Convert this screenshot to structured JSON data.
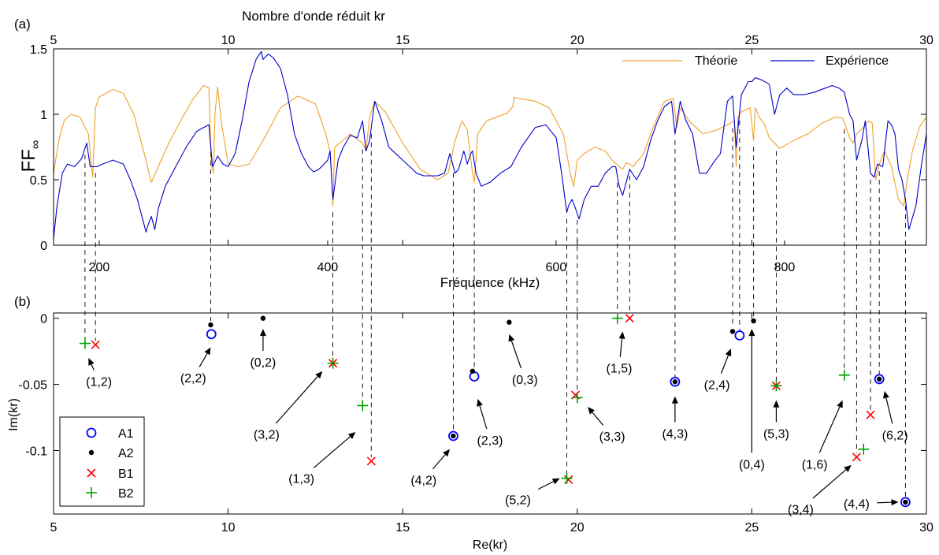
{
  "chart_data": [
    {
      "panel": "(a)",
      "type": "line",
      "ylabel": "FF",
      "ylabel_sub": "∞",
      "top_axis": {
        "label": "Nombre d'onde réduit kr",
        "lim": [
          5,
          30
        ],
        "ticks": [
          5,
          10,
          15,
          20,
          25,
          30
        ]
      },
      "bottom_axis": {
        "label": "Fréquence (kHz)",
        "ticks": [
          200,
          400,
          600,
          800
        ]
      },
      "ylim": [
        0,
        1.5
      ],
      "yticks": [
        0,
        0.5,
        1,
        1.5
      ],
      "legend": "top-right",
      "series": [
        {
          "name": "Théorie",
          "color": "#f0a12b",
          "x": [
            5.0,
            5.15,
            5.3,
            5.5,
            5.75,
            6.0,
            6.08,
            6.12,
            6.2,
            6.3,
            6.42,
            6.5,
            6.7,
            7.0,
            7.3,
            7.6,
            7.8,
            8.0,
            8.3,
            8.7,
            9.0,
            9.3,
            9.45,
            9.52,
            9.58,
            9.62,
            9.7,
            9.8,
            10.0,
            10.3,
            10.6,
            11.0,
            11.5,
            12.0,
            12.5,
            12.8,
            12.93,
            13.0,
            13.05,
            13.2,
            13.5,
            13.85,
            13.95,
            14.05,
            14.2,
            14.5,
            15.0,
            15.5,
            16.0,
            16.3,
            16.5,
            16.7,
            16.85,
            17.0,
            17.05,
            17.15,
            17.4,
            18.0,
            18.15,
            18.2,
            18.35,
            18.8,
            19.2,
            19.6,
            19.8,
            19.9,
            20.0,
            20.2,
            20.5,
            20.8,
            21.0,
            21.2,
            21.3,
            21.4,
            21.5,
            21.6,
            21.9,
            22.2,
            22.5,
            22.75,
            22.85,
            22.95,
            23.2,
            23.6,
            24.0,
            24.3,
            24.5,
            24.55,
            24.6,
            24.7,
            24.95,
            25.05,
            25.1,
            25.2,
            25.35,
            25.5,
            25.8,
            26.2,
            26.6,
            27.0,
            27.4,
            27.6,
            27.7,
            27.8,
            27.9,
            28.0,
            28.2,
            28.35,
            28.45,
            28.55,
            28.65,
            28.8,
            29.0,
            29.2,
            29.35,
            29.45,
            29.6,
            29.8,
            30.0
          ],
          "y": [
            0.55,
            0.8,
            0.95,
            1.0,
            0.98,
            0.85,
            0.62,
            0.52,
            1.05,
            1.13,
            1.15,
            1.16,
            1.19,
            1.16,
            1.0,
            0.7,
            0.48,
            0.6,
            0.78,
            0.98,
            1.12,
            1.22,
            1.2,
            0.62,
            0.55,
            1.0,
            1.21,
            0.95,
            0.62,
            0.6,
            0.62,
            0.8,
            1.05,
            1.14,
            1.08,
            0.85,
            0.7,
            0.3,
            0.75,
            0.78,
            0.85,
            0.78,
            0.72,
            0.98,
            1.1,
            1.02,
            0.78,
            0.58,
            0.5,
            0.55,
            0.8,
            0.95,
            0.88,
            0.55,
            0.48,
            0.85,
            0.95,
            1.01,
            1.06,
            1.13,
            1.12,
            1.1,
            1.05,
            0.85,
            0.55,
            0.45,
            0.65,
            0.7,
            0.75,
            0.72,
            0.65,
            0.6,
            0.58,
            0.63,
            0.62,
            0.6,
            0.7,
            0.92,
            1.1,
            1.12,
            0.9,
            1.05,
            0.95,
            0.85,
            0.88,
            0.92,
            0.95,
            0.6,
            0.98,
            1.02,
            1.05,
            0.8,
            1.05,
            0.98,
            0.93,
            0.82,
            0.74,
            0.8,
            0.85,
            0.93,
            0.98,
            0.97,
            0.9,
            0.82,
            0.78,
            0.85,
            0.9,
            0.95,
            0.93,
            0.5,
            0.62,
            0.72,
            0.6,
            0.35,
            0.3,
            0.5,
            0.72,
            0.9,
            0.98
          ]
        },
        {
          "name": "Expérience",
          "color": "#0000cc",
          "x": [
            5.0,
            5.1,
            5.25,
            5.4,
            5.6,
            5.8,
            5.95,
            6.05,
            6.15,
            6.25,
            6.4,
            6.7,
            7.0,
            7.2,
            7.4,
            7.55,
            7.65,
            7.7,
            7.8,
            7.9,
            8.0,
            8.2,
            8.5,
            8.8,
            9.1,
            9.3,
            9.45,
            9.55,
            9.7,
            9.85,
            10.0,
            10.2,
            10.4,
            10.6,
            10.8,
            10.95,
            11.0,
            11.15,
            11.3,
            11.5,
            11.7,
            11.9,
            12.1,
            12.3,
            12.45,
            12.6,
            12.75,
            12.85,
            12.92,
            13.0,
            13.15,
            13.3,
            13.5,
            13.7,
            13.85,
            13.95,
            14.05,
            14.2,
            14.4,
            14.6,
            14.8,
            15.0,
            15.2,
            15.4,
            15.6,
            15.8,
            16.0,
            16.2,
            16.35,
            16.5,
            16.6,
            16.75,
            16.85,
            16.95,
            17.0,
            17.1,
            17.25,
            17.5,
            17.8,
            18.1,
            18.4,
            18.8,
            19.1,
            19.4,
            19.55,
            19.65,
            19.7,
            19.75,
            19.85,
            19.95,
            20.05,
            20.2,
            20.4,
            20.6,
            20.8,
            21.0,
            21.1,
            21.2,
            21.3,
            21.5,
            21.7,
            21.9,
            22.1,
            22.3,
            22.5,
            22.7,
            22.8,
            22.95,
            23.1,
            23.3,
            23.5,
            23.7,
            23.9,
            24.1,
            24.3,
            24.45,
            24.55,
            24.7,
            24.9,
            25.0,
            25.1,
            25.3,
            25.5,
            25.65,
            25.8,
            26.0,
            26.2,
            26.5,
            26.8,
            27.1,
            27.3,
            27.5,
            27.65,
            27.8,
            27.9,
            28.0,
            28.15,
            28.25,
            28.4,
            28.5,
            28.6,
            28.75,
            28.9,
            29.0,
            29.1,
            29.2,
            29.3,
            29.4,
            29.5,
            29.7,
            29.85,
            30.0
          ],
          "y": [
            0.05,
            0.3,
            0.55,
            0.62,
            0.6,
            0.66,
            0.78,
            0.6,
            0.6,
            0.6,
            0.62,
            0.65,
            0.62,
            0.5,
            0.35,
            0.2,
            0.1,
            0.15,
            0.22,
            0.12,
            0.28,
            0.45,
            0.6,
            0.75,
            0.87,
            0.9,
            0.92,
            0.6,
            0.68,
            0.62,
            0.6,
            0.7,
            0.95,
            1.25,
            1.42,
            1.48,
            1.42,
            1.46,
            1.43,
            1.35,
            1.15,
            0.85,
            0.7,
            0.6,
            0.56,
            0.58,
            0.62,
            0.65,
            0.72,
            0.35,
            0.65,
            0.75,
            0.84,
            0.82,
            0.95,
            0.72,
            0.8,
            1.1,
            0.95,
            0.75,
            0.7,
            0.65,
            0.6,
            0.55,
            0.53,
            0.53,
            0.53,
            0.55,
            0.7,
            0.55,
            0.58,
            0.72,
            0.62,
            0.7,
            0.72,
            0.55,
            0.45,
            0.48,
            0.55,
            0.6,
            0.75,
            0.9,
            0.92,
            0.82,
            0.55,
            0.35,
            0.25,
            0.3,
            0.35,
            0.28,
            0.2,
            0.35,
            0.45,
            0.45,
            0.55,
            0.6,
            0.6,
            0.45,
            0.38,
            0.58,
            0.5,
            0.6,
            0.8,
            0.95,
            1.06,
            1.1,
            0.85,
            1.1,
            0.96,
            0.85,
            0.55,
            0.55,
            0.63,
            0.7,
            1.1,
            1.14,
            0.75,
            1.15,
            1.25,
            1.25,
            1.28,
            1.26,
            1.23,
            1.0,
            1.15,
            1.2,
            1.15,
            1.15,
            1.17,
            1.2,
            1.22,
            1.2,
            1.17,
            1.0,
            0.95,
            0.65,
            0.8,
            0.95,
            0.55,
            0.52,
            0.62,
            0.6,
            0.95,
            0.92,
            0.85,
            0.58,
            0.5,
            0.35,
            0.12,
            0.3,
            0.6,
            0.85
          ]
        }
      ]
    },
    {
      "panel": "(b)",
      "type": "scatter",
      "xlabel": "Re(kr)",
      "ylabel": "Im(kr)",
      "xlim": [
        5,
        30
      ],
      "ylim": [
        -0.148,
        0.004
      ],
      "xticks": [
        5,
        10,
        15,
        20,
        25,
        30
      ],
      "yticks": [
        0,
        -0.05,
        -0.1
      ],
      "ytick_labels": [
        "0",
        "-0.05",
        "-0.1"
      ],
      "legend": "bottom-left",
      "series": [
        {
          "name": "A1",
          "marker": "circle",
          "color": "#0000ff",
          "points": [
            [
              9.52,
              -0.012
            ],
            [
              16.45,
              -0.089
            ],
            [
              17.05,
              -0.044
            ],
            [
              22.8,
              -0.048
            ],
            [
              24.65,
              -0.013
            ],
            [
              28.65,
              -0.046
            ],
            [
              29.4,
              -0.139
            ]
          ]
        },
        {
          "name": "A2",
          "marker": "dot",
          "color": "#000000",
          "points": [
            [
              9.5,
              -0.005
            ],
            [
              11.0,
              0.0
            ],
            [
              16.45,
              -0.089
            ],
            [
              17.0,
              -0.04
            ],
            [
              18.05,
              -0.003
            ],
            [
              22.8,
              -0.048
            ],
            [
              24.45,
              -0.01
            ],
            [
              25.05,
              -0.002
            ],
            [
              28.65,
              -0.046
            ],
            [
              29.4,
              -0.139
            ]
          ]
        },
        {
          "name": "B1",
          "marker": "x",
          "color": "#ff0000",
          "points": [
            [
              6.2,
              -0.02
            ],
            [
              13.0,
              -0.034
            ],
            [
              14.1,
              -0.108
            ],
            [
              19.75,
              -0.122
            ],
            [
              19.95,
              -0.058
            ],
            [
              21.5,
              0.0
            ],
            [
              25.7,
              -0.051
            ],
            [
              28.0,
              -0.105
            ],
            [
              28.4,
              -0.073
            ]
          ]
        },
        {
          "name": "B2",
          "marker": "plus",
          "color": "#00a000",
          "points": [
            [
              5.9,
              -0.019
            ],
            [
              13.0,
              -0.034
            ],
            [
              13.85,
              -0.066
            ],
            [
              19.7,
              -0.121
            ],
            [
              20.0,
              -0.06
            ],
            [
              21.15,
              0.0
            ],
            [
              25.7,
              -0.051
            ],
            [
              27.65,
              -0.043
            ],
            [
              28.2,
              -0.099
            ]
          ]
        }
      ],
      "annotations": [
        {
          "label": "(1,2)",
          "x": 6.3,
          "y": -0.0475,
          "ax": 6.0,
          "ay": -0.03
        },
        {
          "label": "(2,2)",
          "x": 9.0,
          "y": -0.045,
          "ax": 9.5,
          "ay": -0.022
        },
        {
          "label": "(0,2)",
          "x": 11.0,
          "y": -0.033,
          "ax": 11.0,
          "ay": -0.008
        },
        {
          "label": "(3,2)",
          "x": 11.1,
          "y": -0.0875,
          "ax": 12.7,
          "ay": -0.04
        },
        {
          "label": "(1,3)",
          "x": 12.1,
          "y": -0.121,
          "ax": 13.65,
          "ay": -0.086
        },
        {
          "label": "(4,2)",
          "x": 15.6,
          "y": -0.122,
          "ax": 16.35,
          "ay": -0.099
        },
        {
          "label": "(2,3)",
          "x": 17.5,
          "y": -0.092,
          "ax": 17.15,
          "ay": -0.061
        },
        {
          "label": "(0,3)",
          "x": 18.5,
          "y": -0.046,
          "ax": 18.05,
          "ay": -0.012
        },
        {
          "label": "(5,2)",
          "x": 18.3,
          "y": -0.137,
          "ax": 19.5,
          "ay": -0.121
        },
        {
          "label": "(3,3)",
          "x": 21.0,
          "y": -0.089,
          "ax": 20.3,
          "ay": -0.067
        },
        {
          "label": "(1,5)",
          "x": 21.2,
          "y": -0.0375,
          "ax": 21.3,
          "ay": -0.01
        },
        {
          "label": "(4,3)",
          "x": 22.8,
          "y": -0.087,
          "ax": 22.8,
          "ay": -0.059
        },
        {
          "label": "(2,4)",
          "x": 24.0,
          "y": -0.05,
          "ax": 24.4,
          "ay": -0.023
        },
        {
          "label": "(0,4)",
          "x": 25.0,
          "y": -0.11,
          "ax": 25.0,
          "ay": -0.008
        },
        {
          "label": "(5,3)",
          "x": 25.7,
          "y": -0.087,
          "ax": 25.7,
          "ay": -0.062
        },
        {
          "label": "(1,6)",
          "x": 26.8,
          "y": -0.11,
          "ax": 27.6,
          "ay": -0.062
        },
        {
          "label": "(6,2)",
          "x": 29.1,
          "y": -0.088,
          "ax": 28.8,
          "ay": -0.055
        },
        {
          "label": "(3,4)",
          "x": 26.4,
          "y": -0.144,
          "ax": 27.85,
          "ay": -0.111
        },
        {
          "label": "(4,4)",
          "x": 28.0,
          "y": -0.14,
          "ax": 29.2,
          "ay": -0.139
        }
      ],
      "connectors": [
        5.9,
        6.2,
        9.5,
        13.0,
        13.85,
        14.1,
        16.45,
        17.05,
        19.7,
        20.0,
        21.15,
        21.5,
        22.8,
        24.45,
        24.65,
        25.05,
        25.7,
        27.65,
        28.0,
        28.4,
        28.65,
        29.4
      ]
    }
  ]
}
